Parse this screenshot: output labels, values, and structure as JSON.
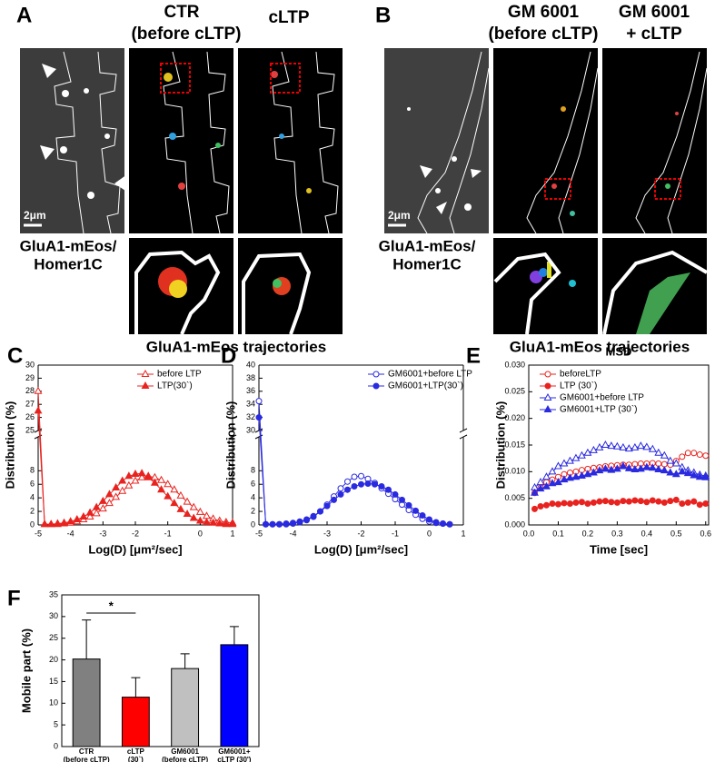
{
  "panels": {
    "A": {
      "label": "A",
      "headers": [
        [
          "CTR",
          "(before cLTP)"
        ],
        [
          "cLTP"
        ]
      ],
      "scale_bar": "2μm",
      "stain": [
        "GluA1-mEos/",
        "Homer1C"
      ],
      "caption": "GluA1-mEos trajectories"
    },
    "B": {
      "label": "B",
      "headers": [
        [
          "GM 6001",
          "(before cLTP)"
        ],
        [
          "GM 6001",
          "+ cLTP"
        ]
      ],
      "scale_bar": "2μm",
      "stain": [
        "GluA1-mEos/",
        "Homer1C"
      ],
      "caption": "GluA1-mEos trajectories"
    }
  },
  "chart_data": [
    {
      "type": "line",
      "panel": "C",
      "ylabel": "Distribution (%)",
      "xlabel": "Log(D) [μm²/sec]",
      "legend": "upper right",
      "xlim": [
        -5,
        1
      ],
      "xticks": [
        -5,
        -4,
        -3,
        -2,
        -1,
        0,
        1
      ],
      "ylim": [
        0,
        30
      ],
      "ybreak": [
        13,
        25
      ],
      "yticks": [
        0,
        2,
        4,
        6,
        8,
        25,
        26,
        27,
        28,
        29,
        30
      ],
      "x": [
        -5,
        -4.8,
        -4.6,
        -4.4,
        -4.2,
        -4,
        -3.8,
        -3.6,
        -3.4,
        -3.2,
        -3,
        -2.8,
        -2.6,
        -2.4,
        -2.2,
        -2,
        -1.8,
        -1.6,
        -1.4,
        -1.2,
        -1,
        -0.8,
        -0.6,
        -0.4,
        -0.2,
        0,
        0.2,
        0.4,
        0.6,
        0.8,
        1
      ],
      "series": [
        {
          "name": "before LTP",
          "color": "#e8231f",
          "marker": "open-triangle",
          "values": [
            28,
            0.1,
            0.1,
            0.1,
            0.2,
            0.3,
            0.5,
            0.8,
            1.2,
            1.7,
            2.4,
            3.2,
            4.1,
            5,
            5.8,
            6.5,
            7,
            7.2,
            7,
            6.6,
            6,
            5.2,
            4.3,
            3.4,
            2.6,
            1.9,
            1.3,
            0.9,
            0.6,
            0.4,
            0.3
          ]
        },
        {
          "name": "LTP(30`)",
          "color": "#e8231f",
          "marker": "filled-triangle",
          "values": [
            26.5,
            0.1,
            0.1,
            0.2,
            0.3,
            0.5,
            0.8,
            1.2,
            1.8,
            2.6,
            3.5,
            4.5,
            5.5,
            6.5,
            7.2,
            7.5,
            7.6,
            7,
            6.2,
            5.2,
            4.2,
            3.2,
            2.3,
            1.6,
            1,
            0.6,
            0.4,
            0.3,
            0.2,
            0.1,
            0.1
          ]
        }
      ]
    },
    {
      "type": "line",
      "panel": "D",
      "ylabel": "Distribution (%)",
      "xlabel": "Log(D) [μm²/sec]",
      "legend": "upper right",
      "xlim": [
        -5,
        1
      ],
      "xticks": [
        -5,
        -4,
        -3,
        -2,
        -1,
        0,
        1
      ],
      "ylim": [
        0,
        40
      ],
      "ybreak": [
        13,
        30
      ],
      "yticks": [
        0,
        2,
        4,
        6,
        8,
        30,
        32,
        34,
        36,
        38,
        40
      ],
      "x": [
        -5,
        -4.8,
        -4.6,
        -4.4,
        -4.2,
        -4,
        -3.8,
        -3.6,
        -3.4,
        -3.2,
        -3,
        -2.8,
        -2.6,
        -2.4,
        -2.2,
        -2,
        -1.8,
        -1.6,
        -1.4,
        -1.2,
        -1,
        -0.8,
        -0.6,
        -0.4,
        -0.2,
        0,
        0.2,
        0.4,
        0.6
      ],
      "series": [
        {
          "name": "GM6001+before LTP",
          "color": "#2a2ae0",
          "marker": "open-circle",
          "values": [
            34.5,
            0.1,
            0.1,
            0.1,
            0.1,
            0.2,
            0.4,
            0.7,
            1.2,
            2,
            3,
            4.2,
            5.4,
            6.4,
            7.1,
            7.2,
            6.8,
            6.2,
            5.4,
            4.6,
            3.8,
            3,
            2.2,
            1.5,
            0.9,
            0.5,
            0.3,
            0.2,
            0.1
          ]
        },
        {
          "name": "GM6001+LTP(30`)",
          "color": "#2a2ae0",
          "marker": "filled-circle",
          "values": [
            32,
            0.1,
            0.1,
            0.1,
            0.2,
            0.3,
            0.5,
            0.8,
            1.3,
            2,
            2.8,
            3.7,
            4.5,
            5.2,
            5.7,
            6,
            6.1,
            6,
            5.7,
            5.2,
            4.5,
            3.7,
            2.9,
            2.1,
            1.4,
            0.8,
            0.4,
            0.2,
            0.1
          ]
        }
      ]
    },
    {
      "type": "line",
      "panel": "E",
      "title": "MSD",
      "ylabel": "Distribution (%)",
      "xlabel": "Time [sec]",
      "legend": "upper left",
      "xlim": [
        0,
        0.61
      ],
      "xticks": [
        {
          "value": 0,
          "label": "0.0"
        },
        0.1,
        0.2,
        0.3,
        0.4,
        0.5,
        0.6
      ],
      "ylim": [
        0,
        0.03
      ],
      "yticks": [
        {
          "value": 0,
          "label": "0.000"
        },
        {
          "value": 0.005,
          "label": "0.005"
        },
        {
          "value": 0.01,
          "label": "0.010"
        },
        {
          "value": 0.015,
          "label": "0.015"
        },
        {
          "value": 0.02,
          "label": "0.020"
        },
        {
          "value": 0.025,
          "label": "0.025"
        },
        {
          "value": 0.03,
          "label": "0.030"
        }
      ],
      "x": [
        0.02,
        0.04,
        0.06,
        0.08,
        0.1,
        0.12,
        0.14,
        0.16,
        0.18,
        0.2,
        0.22,
        0.24,
        0.26,
        0.28,
        0.3,
        0.32,
        0.34,
        0.36,
        0.38,
        0.4,
        0.42,
        0.44,
        0.46,
        0.48,
        0.5,
        0.52,
        0.54,
        0.56,
        0.58,
        0.6
      ],
      "series": [
        {
          "name": "beforeLTP",
          "color": "#e8231f",
          "marker": "open-circle",
          "values": [
            0.006,
            0.007,
            0.008,
            0.0085,
            0.009,
            0.0095,
            0.0098,
            0.01,
            0.0103,
            0.0105,
            0.0107,
            0.0108,
            0.011,
            0.0111,
            0.0112,
            0.0113,
            0.0113,
            0.0114,
            0.0115,
            0.0115,
            0.0116,
            0.0115,
            0.0114,
            0.0113,
            0.012,
            0.0128,
            0.0135,
            0.0135,
            0.0132,
            0.013
          ]
        },
        {
          "name": "LTP (30`)",
          "color": "#e8231f",
          "marker": "filled-circle",
          "values": [
            0.003,
            0.0035,
            0.0037,
            0.004,
            0.0039,
            0.0041,
            0.004,
            0.0042,
            0.0043,
            0.004,
            0.0042,
            0.0044,
            0.0045,
            0.0043,
            0.0042,
            0.0045,
            0.0044,
            0.0046,
            0.0045,
            0.0043,
            0.0046,
            0.0044,
            0.0042,
            0.0045,
            0.0047,
            0.004,
            0.0042,
            0.0044,
            0.0038,
            0.004
          ]
        },
        {
          "name": "GM6001+before LTP",
          "color": "#2a2ae0",
          "marker": "open-triangle",
          "values": [
            0.007,
            0.008,
            0.009,
            0.01,
            0.011,
            0.0115,
            0.012,
            0.0125,
            0.013,
            0.0135,
            0.014,
            0.0145,
            0.015,
            0.0148,
            0.0147,
            0.0145,
            0.0143,
            0.0145,
            0.0148,
            0.0146,
            0.0142,
            0.0135,
            0.013,
            0.012,
            0.0115,
            0.0108,
            0.0102,
            0.0098,
            0.0094,
            0.0092
          ]
        },
        {
          "name": "GM6001+LTP (30`)",
          "color": "#2a2ae0",
          "marker": "filled-triangle",
          "values": [
            0.006,
            0.0068,
            0.0072,
            0.0078,
            0.008,
            0.0085,
            0.0088,
            0.009,
            0.0092,
            0.0095,
            0.0098,
            0.0102,
            0.0105,
            0.0103,
            0.0105,
            0.011,
            0.0106,
            0.0104,
            0.0105,
            0.0108,
            0.0107,
            0.0104,
            0.0102,
            0.0098,
            0.0095,
            0.01,
            0.0097,
            0.0093,
            0.009,
            0.0089
          ]
        }
      ]
    },
    {
      "type": "bar",
      "panel": "F",
      "ylabel": "Mobile part (%)",
      "annotation": "*",
      "ylim": [
        0,
        35
      ],
      "yticks": [
        0,
        5,
        10,
        15,
        20,
        25,
        30,
        35
      ],
      "categories": [
        [
          "CTR",
          "(before cLTP)"
        ],
        [
          "cLTP",
          "(30`)"
        ],
        [
          "GM6001",
          "(before cLTP)"
        ],
        [
          "GM6001+",
          "cLTP (30')"
        ]
      ],
      "values": [
        20.2,
        11.4,
        18,
        23.5
      ],
      "errors": [
        9,
        4.5,
        3.4,
        4.2
      ],
      "colors": [
        "#808080",
        "#ff0000",
        "#c0c0c0",
        "#0000ff"
      ]
    }
  ]
}
